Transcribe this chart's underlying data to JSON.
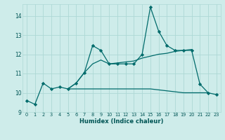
{
  "xlabel": "Humidex (Indice chaleur)",
  "background_color": "#ceecea",
  "grid_color": "#add8d5",
  "line_color": "#006b6b",
  "xlim": [
    -0.5,
    23.5
  ],
  "ylim": [
    9,
    14.6
  ],
  "x_ticks": [
    0,
    1,
    2,
    3,
    4,
    5,
    6,
    7,
    8,
    9,
    10,
    11,
    12,
    13,
    14,
    15,
    16,
    17,
    18,
    19,
    20,
    21,
    22,
    23
  ],
  "y_ticks": [
    9,
    10,
    11,
    12,
    13,
    14
  ],
  "series1_x": [
    0,
    1,
    2,
    3,
    4,
    5,
    6,
    7,
    8,
    9,
    10,
    11,
    12,
    13,
    14,
    15,
    16,
    17,
    18,
    19,
    20,
    21,
    22,
    23
  ],
  "series1_y": [
    9.6,
    9.4,
    10.5,
    10.2,
    10.3,
    10.2,
    10.5,
    11.05,
    12.45,
    12.2,
    11.5,
    11.5,
    11.5,
    11.5,
    12.0,
    14.45,
    13.2,
    12.45,
    12.2,
    12.2,
    12.2,
    10.45,
    10.0,
    9.9
  ],
  "series2_x": [
    5,
    6,
    7,
    10,
    11,
    12,
    13,
    14,
    15,
    16,
    17,
    18,
    19,
    20,
    21,
    22
  ],
  "series2_y": [
    10.2,
    10.2,
    10.2,
    10.2,
    10.2,
    10.2,
    10.2,
    10.2,
    10.2,
    10.15,
    10.1,
    10.05,
    10.0,
    10.0,
    10.0,
    10.0
  ],
  "series3_x": [
    5,
    6,
    7,
    8,
    9,
    10,
    11,
    12,
    13,
    14,
    15,
    16,
    17,
    18,
    19,
    20
  ],
  "series3_y": [
    10.2,
    10.5,
    11.05,
    11.5,
    11.7,
    11.5,
    11.55,
    11.6,
    11.65,
    11.8,
    11.9,
    12.0,
    12.05,
    12.15,
    12.2,
    12.25
  ]
}
